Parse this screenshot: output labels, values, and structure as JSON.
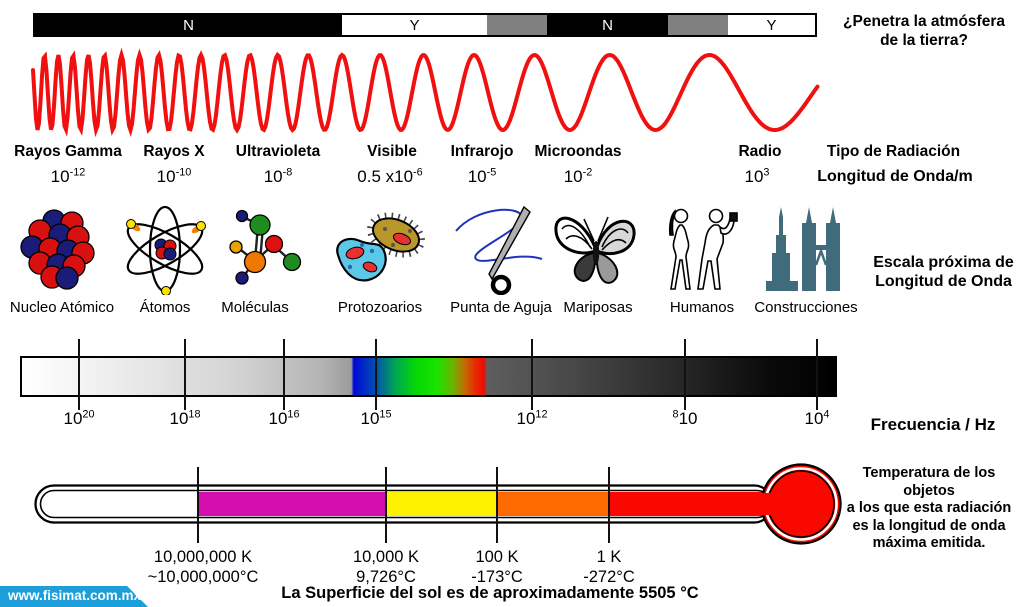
{
  "atmosphere": {
    "question_line1": "¿Penetra la atmósfera",
    "question_line2": "de la tierra?",
    "segments": [
      {
        "label": "N",
        "style": "black"
      },
      {
        "label": "Y",
        "style": "white"
      },
      {
        "label": "",
        "style": "gray"
      },
      {
        "label": "N",
        "style": "black"
      },
      {
        "label": "",
        "style": "gray"
      },
      {
        "label": "Y",
        "style": "white"
      }
    ]
  },
  "radiation": {
    "header": "Tipo de Radiación",
    "unit_label": "Longitud de Onda/m",
    "types": [
      {
        "name": "Rayos Gamma",
        "value_base": "10",
        "value_exp": "-12"
      },
      {
        "name": "Rayos X",
        "value_base": "10",
        "value_exp": "-10"
      },
      {
        "name": "Ultravioleta",
        "value_base": "10",
        "value_exp": "-8"
      },
      {
        "name": "Visible",
        "value_base": "0.5 x10",
        "value_exp": "-6"
      },
      {
        "name": "Infrarojo",
        "value_base": "10",
        "value_exp": "-5"
      },
      {
        "name": "Microondas",
        "value_base": "10",
        "value_exp": "-2"
      },
      {
        "name": "Radio",
        "value_base": "10",
        "value_exp": "3"
      }
    ]
  },
  "scale": {
    "title_line1": "Escala próxima de",
    "title_line2": "Longitud de Onda",
    "objects": [
      {
        "label": "Nucleo Atómico",
        "icon": "atomic-nucleus-icon"
      },
      {
        "label": "Átomos",
        "icon": "atom-icon"
      },
      {
        "label": "Moléculas",
        "icon": "molecule-icon"
      },
      {
        "label": "Protozoarios",
        "icon": "protozoa-icon"
      },
      {
        "label": "Punta de Aguja",
        "icon": "needle-icon"
      },
      {
        "label": "Mariposas",
        "icon": "butterfly-icon"
      },
      {
        "label": "Humanos",
        "icon": "humans-icon"
      },
      {
        "label": "Construcciones",
        "icon": "buildings-icon"
      }
    ]
  },
  "frequency": {
    "axis_label": "Frecuencia / Hz",
    "ticks": [
      {
        "pre": "",
        "base": "10",
        "exp": "20"
      },
      {
        "pre": "",
        "base": "10",
        "exp": "18"
      },
      {
        "pre": "",
        "base": "10",
        "exp": "16"
      },
      {
        "pre": "",
        "base": "10",
        "exp": "15"
      },
      {
        "pre": "",
        "base": "10",
        "exp": "12"
      },
      {
        "pre": "8",
        "base": "10",
        "exp": ""
      },
      {
        "pre": "",
        "base": "10",
        "exp": "4"
      }
    ]
  },
  "thermometer": {
    "description_lines": [
      "Temperatura de los",
      "objetos",
      "a los que esta radiación",
      "es la longitud de onda",
      "máxima emitida."
    ],
    "points": [
      {
        "kelvin": "10,000,000 K",
        "celsius": "~10,000,000°C"
      },
      {
        "kelvin": "10,000 K",
        "celsius": "9,726°C"
      },
      {
        "kelvin": "100 K",
        "celsius": "-173°C"
      },
      {
        "kelvin": "1 K",
        "celsius": "-272°C"
      }
    ]
  },
  "footer": {
    "website": "www.fisimat.com.mx",
    "sun_note": "La Superficie del sol es de aproximadamente 5505 °C"
  },
  "colors": {
    "wave_red": "#f01010",
    "fisimat_blue": "#1b9ed9",
    "building_teal": "#3f6b7d",
    "thermo_magenta": "#d40fae",
    "thermo_yellow": "#fff200",
    "thermo_orange": "#ff6a00",
    "thermo_red": "#fa0800"
  }
}
